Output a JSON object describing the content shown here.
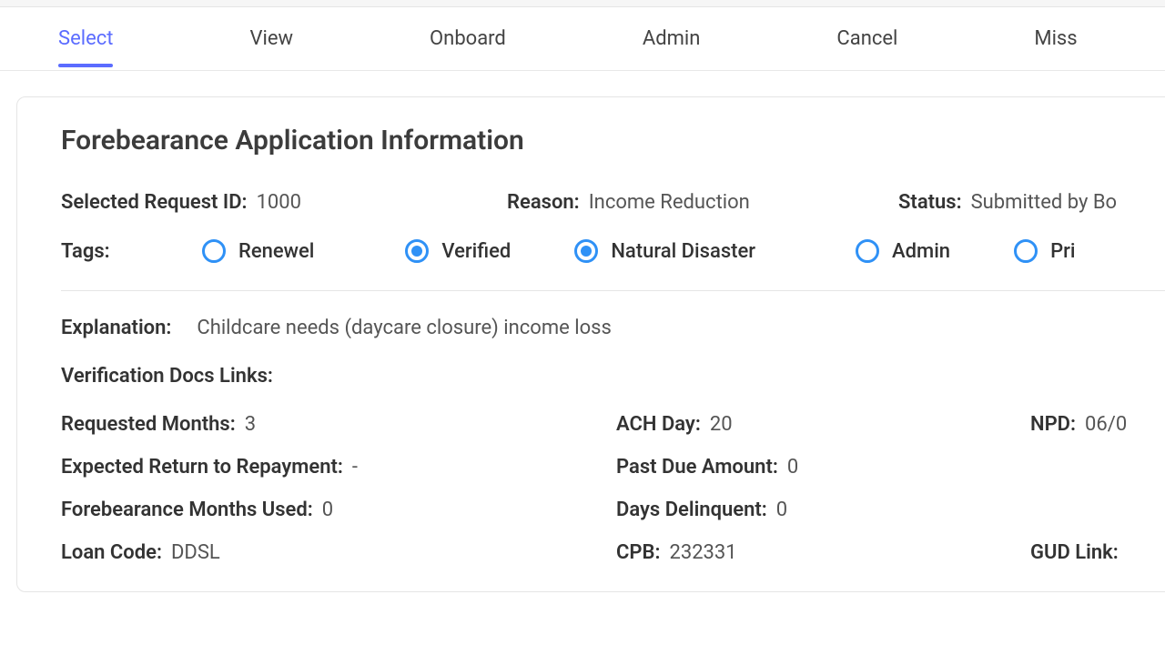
{
  "tabs": {
    "items": [
      "Select",
      "View",
      "Onboard",
      "Admin",
      "Cancel",
      "Miss"
    ],
    "active_index": 0
  },
  "panel": {
    "title": "Forebearance Application Information",
    "request_id_label": "Selected Request ID:",
    "request_id_value": "1000",
    "reason_label": "Reason:",
    "reason_value": "Income Reduction",
    "status_label": "Status:",
    "status_value": "Submitted by Bo",
    "tags_label": "Tags:",
    "tags": [
      {
        "label": "Renewel",
        "selected": false
      },
      {
        "label": "Verified",
        "selected": true
      },
      {
        "label": "Natural Disaster",
        "selected": true
      },
      {
        "label": "Admin",
        "selected": false
      },
      {
        "label": "Pri",
        "selected": false
      }
    ],
    "explanation_label": "Explanation:",
    "explanation_value": "Childcare needs (daycare closure) income loss",
    "docs_label": "Verification Docs Links:",
    "requested_months_label": "Requested Months:",
    "requested_months_value": "3",
    "ach_day_label": "ACH Day:",
    "ach_day_value": "20",
    "npd_label": "NPD:",
    "npd_value": "06/0",
    "return_label": "Expected Return to Repayment:",
    "return_value": "-",
    "past_due_label": "Past Due Amount:",
    "past_due_value": "0",
    "months_used_label": "Forebearance Months Used:",
    "months_used_value": "0",
    "days_delinquent_label": "Days Delinquent:",
    "days_delinquent_value": "0",
    "loan_code_label": "Loan Code:",
    "loan_code_value": "DDSL",
    "cpb_label": "CPB:",
    "cpb_value": "232331",
    "gud_label": "GUD Link:"
  },
  "colors": {
    "accent": "#5b6cff",
    "radio": "#2f91f6",
    "text": "#3a3a3a",
    "border": "#e5e5e5"
  }
}
